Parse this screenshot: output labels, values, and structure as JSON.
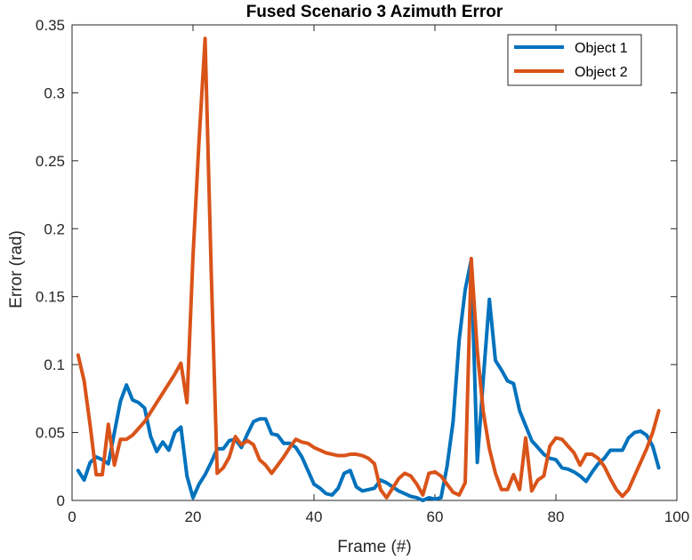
{
  "chart_data": {
    "type": "line",
    "title": "Fused Scenario 3 Azimuth Error",
    "xlabel": "Frame (#)",
    "ylabel": "Error (rad)",
    "xlim": [
      0,
      100
    ],
    "ylim": [
      0,
      0.35
    ],
    "xticks": [
      0,
      20,
      40,
      60,
      80,
      100
    ],
    "yticks": [
      0,
      0.05,
      0.1,
      0.15,
      0.2,
      0.25,
      0.3,
      0.35
    ],
    "xtick_labels": [
      "0",
      "20",
      "40",
      "60",
      "80",
      "100"
    ],
    "ytick_labels": [
      "0",
      "0.05",
      "0.1",
      "0.15",
      "0.2",
      "0.25",
      "0.3",
      "0.35"
    ],
    "grid": false,
    "legend_position": "top-right",
    "series": [
      {
        "name": "Object 1",
        "color": "#0072BD",
        "x": [
          1,
          2,
          3,
          4,
          5,
          6,
          7,
          8,
          9,
          10,
          11,
          12,
          13,
          14,
          15,
          16,
          17,
          18,
          19,
          20,
          21,
          22,
          23,
          24,
          25,
          26,
          27,
          28,
          29,
          30,
          31,
          32,
          33,
          34,
          35,
          36,
          37,
          38,
          39,
          40,
          41,
          42,
          43,
          44,
          45,
          46,
          47,
          48,
          49,
          50,
          51,
          52,
          53,
          54,
          55,
          56,
          57,
          58,
          59,
          60,
          61,
          62,
          63,
          64,
          65,
          66,
          67,
          68,
          69,
          70,
          71,
          72,
          73,
          74,
          75,
          76,
          77,
          78,
          79,
          80,
          81,
          82,
          83,
          84,
          85,
          86,
          87,
          88,
          89,
          90,
          91,
          92,
          93,
          94,
          95,
          96,
          97
        ],
        "values": [
          0.022,
          0.015,
          0.028,
          0.032,
          0.03,
          0.027,
          0.05,
          0.073,
          0.085,
          0.074,
          0.072,
          0.068,
          0.047,
          0.036,
          0.043,
          0.037,
          0.05,
          0.054,
          0.018,
          0.002,
          0.012,
          0.019,
          0.028,
          0.038,
          0.038,
          0.044,
          0.045,
          0.039,
          0.049,
          0.058,
          0.06,
          0.06,
          0.049,
          0.048,
          0.042,
          0.042,
          0.039,
          0.032,
          0.022,
          0.012,
          0.009,
          0.005,
          0.004,
          0.009,
          0.02,
          0.022,
          0.01,
          0.007,
          0.008,
          0.009,
          0.015,
          0.013,
          0.01,
          0.007,
          0.005,
          0.003,
          0.002,
          0.0,
          0.002,
          0.001,
          0.002,
          0.025,
          0.058,
          0.118,
          0.155,
          0.177,
          0.028,
          0.09,
          0.148,
          0.103,
          0.096,
          0.088,
          0.086,
          0.066,
          0.055,
          0.044,
          0.039,
          0.034,
          0.031,
          0.03,
          0.024,
          0.023,
          0.021,
          0.018,
          0.014,
          0.021,
          0.027,
          0.031,
          0.037,
          0.037,
          0.037,
          0.046,
          0.05,
          0.051,
          0.048,
          0.04,
          0.024
        ]
      },
      {
        "name": "Object 2",
        "color": "#D95319",
        "x": [
          1,
          2,
          3,
          4,
          5,
          6,
          7,
          8,
          9,
          10,
          11,
          12,
          13,
          14,
          15,
          16,
          17,
          18,
          19,
          20,
          21,
          22,
          23,
          24,
          25,
          26,
          27,
          28,
          29,
          30,
          31,
          32,
          33,
          34,
          35,
          36,
          37,
          38,
          39,
          40,
          41,
          42,
          43,
          44,
          45,
          46,
          47,
          48,
          49,
          50,
          51,
          52,
          53,
          54,
          55,
          56,
          57,
          58,
          59,
          60,
          61,
          62,
          63,
          64,
          65,
          66,
          67,
          68,
          69,
          70,
          71,
          72,
          73,
          74,
          75,
          76,
          77,
          78,
          79,
          80,
          81,
          82,
          83,
          84,
          85,
          86,
          87,
          88,
          89,
          90,
          91,
          92,
          93,
          94,
          95,
          96,
          97
        ],
        "values": [
          0.107,
          0.088,
          0.055,
          0.019,
          0.019,
          0.056,
          0.026,
          0.045,
          0.045,
          0.048,
          0.053,
          0.058,
          0.065,
          0.072,
          0.079,
          0.086,
          0.093,
          0.101,
          0.072,
          0.18,
          0.265,
          0.34,
          0.17,
          0.02,
          0.024,
          0.032,
          0.047,
          0.041,
          0.044,
          0.041,
          0.03,
          0.026,
          0.02,
          0.026,
          0.032,
          0.039,
          0.045,
          0.043,
          0.042,
          0.039,
          0.037,
          0.035,
          0.034,
          0.033,
          0.033,
          0.034,
          0.034,
          0.033,
          0.031,
          0.027,
          0.008,
          0.002,
          0.009,
          0.016,
          0.02,
          0.018,
          0.012,
          0.004,
          0.02,
          0.021,
          0.018,
          0.012,
          0.006,
          0.004,
          0.013,
          0.178,
          0.11,
          0.065,
          0.038,
          0.02,
          0.008,
          0.008,
          0.019,
          0.008,
          0.046,
          0.007,
          0.015,
          0.018,
          0.04,
          0.046,
          0.045,
          0.04,
          0.035,
          0.026,
          0.034,
          0.034,
          0.031,
          0.025,
          0.016,
          0.008,
          0.003,
          0.008,
          0.018,
          0.028,
          0.038,
          0.05,
          0.066
        ]
      }
    ]
  }
}
